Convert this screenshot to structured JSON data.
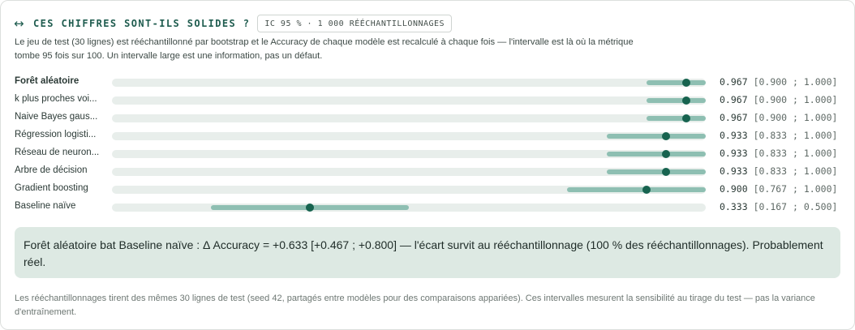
{
  "header": {
    "icon": "left-right-arrow-icon",
    "arrow_glyph": "↔",
    "title": "CES CHIFFRES SONT-ILS SOLIDES ?",
    "badge": "IC 95 % · 1 000 RÉÉCHANTILLONNAGES"
  },
  "description": "Le jeu de test (30 lignes) est rééchantillonné par bootstrap et le Accuracy de chaque modèle est recalculé à chaque fois — l'intervalle est là où la métrique tombe 95 fois sur 100. Un intervalle large est une information, pas un défaut.",
  "colors": {
    "accent": "#1f5c4f",
    "ci_bar": "#8ebfb2",
    "point": "#17634f",
    "track": "#e8eeeb",
    "verdict_bg": "#dde9e3"
  },
  "scale": {
    "min": 0,
    "max": 1
  },
  "rows": [
    {
      "label": "Forêt aléatoire",
      "value": 0.967,
      "low": 0.9,
      "high": 1.0,
      "value_text": "0.967",
      "range_text": "[0.900 ; 1.000]",
      "bold": true
    },
    {
      "label": "k plus proches voi...",
      "value": 0.967,
      "low": 0.9,
      "high": 1.0,
      "value_text": "0.967",
      "range_text": "[0.900 ; 1.000]"
    },
    {
      "label": "Naive Bayes gaus...",
      "value": 0.967,
      "low": 0.9,
      "high": 1.0,
      "value_text": "0.967",
      "range_text": "[0.900 ; 1.000]"
    },
    {
      "label": "Régression logisti...",
      "value": 0.933,
      "low": 0.833,
      "high": 1.0,
      "value_text": "0.933",
      "range_text": "[0.833 ; 1.000]"
    },
    {
      "label": "Réseau de neuron...",
      "value": 0.933,
      "low": 0.833,
      "high": 1.0,
      "value_text": "0.933",
      "range_text": "[0.833 ; 1.000]"
    },
    {
      "label": "Arbre de décision",
      "value": 0.933,
      "low": 0.833,
      "high": 1.0,
      "value_text": "0.933",
      "range_text": "[0.833 ; 1.000]"
    },
    {
      "label": "Gradient boosting",
      "value": 0.9,
      "low": 0.767,
      "high": 1.0,
      "value_text": "0.900",
      "range_text": "[0.767 ; 1.000]"
    },
    {
      "label": "Baseline naïve",
      "value": 0.333,
      "low": 0.167,
      "high": 0.5,
      "value_text": "0.333",
      "range_text": "[0.167 ; 0.500]"
    }
  ],
  "verdict": "Forêt aléatoire bat Baseline naïve : Δ Accuracy = +0.633 [+0.467 ; +0.800] — l'écart survit au rééchantillonnage (100 % des rééchantillonnages). Probablement réel.",
  "footnote": "Les rééchantillonnages tirent des mêmes 30 lignes de test (seed 42, partagés entre modèles pour des comparaisons appariées). Ces intervalles mesurent la sensibilité au tirage du test — pas la variance d'entraînement."
}
